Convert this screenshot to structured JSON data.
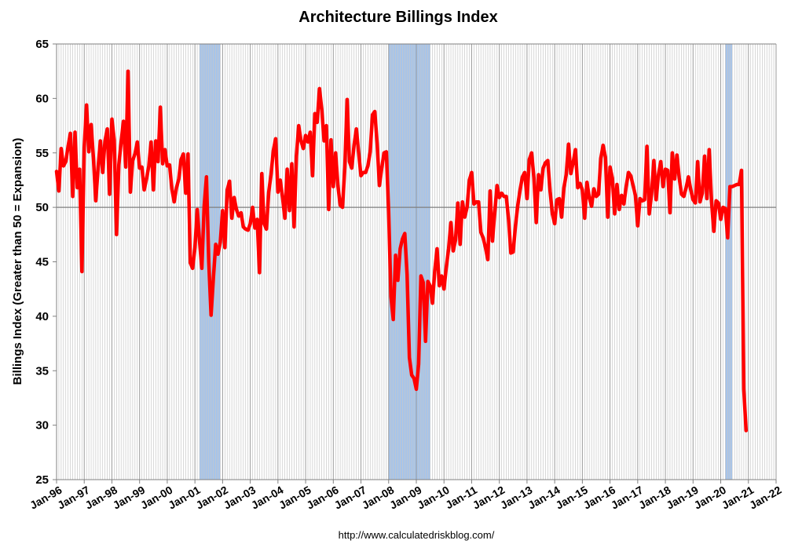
{
  "chart_data": {
    "type": "line",
    "title": "Architecture Billings Index",
    "ylabel": "Billings Index (Greater than 50 = Expansion)",
    "xlabel": "",
    "source_text": "http://www.calculatedriskblog.com/",
    "ylim": [
      25,
      65
    ],
    "yticks": [
      25,
      30,
      35,
      40,
      45,
      50,
      55,
      60,
      65
    ],
    "x_range_years": [
      1996.0,
      2022.0
    ],
    "xtick_labels": [
      "Jan-96",
      "Jan-97",
      "Jan-98",
      "Jan-99",
      "Jan-00",
      "Jan-01",
      "Jan-02",
      "Jan-03",
      "Jan-04",
      "Jan-05",
      "Jan-06",
      "Jan-07",
      "Jan-08",
      "Jan-09",
      "Jan-10",
      "Jan-11",
      "Jan-12",
      "Jan-13",
      "Jan-14",
      "Jan-15",
      "Jan-16",
      "Jan-17",
      "Jan-18",
      "Jan-19",
      "Jan-20",
      "Jan-21",
      "Jan-22"
    ],
    "reference_line": 50,
    "grid": "vertical monthly lines",
    "colors": {
      "series": "#ff0000",
      "recession": "#a6c4ea",
      "grid": "#c8c8c8",
      "axis": "#808080"
    },
    "recessions": [
      {
        "start": 2001.167,
        "end": 2001.917
      },
      {
        "start": 2008.0,
        "end": 2009.5
      },
      {
        "start": 2020.167,
        "end": 2020.417
      }
    ],
    "series": [
      {
        "name": "Architecture Billings Index",
        "start_year": 1996.0,
        "step": 0.0833333,
        "values": [
          53.3,
          51.5,
          55.4,
          53.8,
          54.2,
          55.6,
          56.8,
          51.0,
          56.9,
          51.8,
          53.5,
          44.1,
          55.5,
          59.4,
          55.1,
          57.6,
          54.5,
          50.6,
          53.6,
          56.1,
          53.2,
          56.1,
          57.2,
          51.2,
          58.1,
          56.2,
          47.5,
          53.9,
          56.0,
          57.9,
          53.7,
          62.5,
          51.4,
          54.3,
          54.9,
          56.0,
          53.6,
          53.7,
          51.6,
          52.6,
          53.8,
          56.0,
          51.6,
          56.1,
          54.2,
          59.2,
          54.0,
          55.3,
          53.8,
          53.9,
          51.7,
          50.5,
          51.8,
          52.6,
          54.4,
          54.9,
          51.3,
          54.9,
          44.9,
          44.4,
          46.3,
          49.8,
          46.9,
          44.4,
          50.1,
          52.8,
          45.0,
          40.1,
          43.5,
          46.6,
          45.7,
          46.8,
          49.7,
          46.3,
          51.6,
          52.4,
          49.0,
          50.9,
          49.8,
          49.2,
          49.5,
          48.2,
          48.0,
          47.9,
          48.5,
          50.0,
          48.1,
          48.9,
          44.0,
          53.1,
          48.5,
          48.0,
          51.4,
          53.0,
          55.2,
          56.3,
          51.4,
          52.5,
          50.9,
          49.0,
          53.5,
          49.7,
          54.0,
          48.2,
          54.7,
          57.5,
          56.1,
          55.4,
          56.6,
          56.0,
          56.9,
          52.9,
          58.6,
          57.8,
          60.9,
          59.0,
          56.1,
          57.5,
          49.8,
          56.2,
          51.9,
          55.0,
          52.0,
          50.2,
          50.0,
          53.7,
          59.9,
          54.2,
          53.6,
          55.7,
          57.2,
          55.0,
          52.9,
          53.2,
          53.2,
          53.8,
          55.1,
          58.5,
          58.8,
          55.9,
          52.0,
          53.6,
          55.0,
          55.1,
          49.6,
          41.8,
          39.7,
          45.6,
          43.3,
          46.2,
          47.1,
          47.6,
          43.8,
          36.2,
          34.6,
          34.3,
          33.3,
          35.6,
          43.7,
          43.1,
          37.7,
          43.2,
          42.8,
          41.2,
          44.2,
          46.2,
          42.8,
          43.7,
          42.5,
          44.5,
          46.2,
          48.6,
          46.0,
          47.0,
          50.4,
          46.6,
          50.5,
          49.1,
          50.0,
          52.5,
          53.2,
          50.3,
          50.5,
          50.5,
          47.7,
          47.2,
          46.3,
          45.2,
          51.5,
          46.9,
          49.5,
          52.0,
          50.9,
          51.3,
          51.0,
          51.0,
          48.9,
          45.8,
          45.9,
          48.3,
          50.2,
          51.6,
          52.8,
          53.2,
          50.8,
          54.4,
          55.0,
          52.7,
          48.6,
          53.0,
          51.6,
          53.6,
          54.1,
          54.3,
          51.5,
          49.4,
          48.5,
          50.7,
          50.8,
          49.1,
          51.8,
          53.0,
          55.8,
          53.1,
          54.1,
          55.3,
          51.8,
          52.2,
          51.6,
          49.0,
          52.3,
          50.9,
          50.1,
          51.7,
          51.0,
          51.2,
          54.5,
          55.7,
          54.6,
          49.1,
          53.7,
          52.7,
          49.4,
          52.1,
          49.8,
          51.1,
          50.3,
          51.9,
          53.2,
          52.9,
          52.0,
          51.1,
          48.3,
          50.8,
          50.6,
          50.7,
          55.6,
          49.4,
          51.2,
          54.3,
          50.7,
          53.0,
          54.2,
          51.9,
          53.5,
          53.4,
          49.5,
          55.0,
          52.6,
          54.8,
          52.7,
          51.2,
          51.0,
          51.8,
          52.8,
          51.6,
          50.7,
          50.4,
          54.2,
          50.5,
          51.3,
          54.7,
          50.8,
          55.3,
          50.6,
          47.8,
          50.6,
          50.4,
          48.9,
          50.0,
          49.9,
          47.2,
          51.9,
          51.9,
          52.0,
          52.1,
          52.1,
          53.4,
          33.3,
          29.5
        ]
      }
    ]
  }
}
